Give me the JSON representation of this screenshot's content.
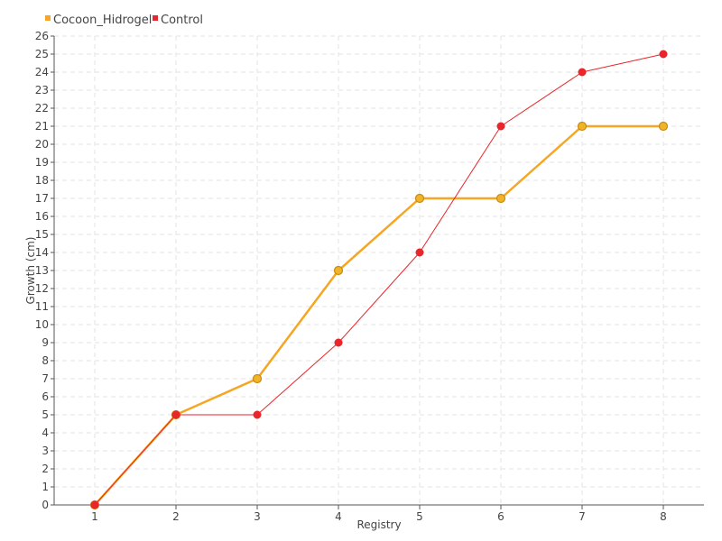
{
  "chart_data": {
    "type": "line",
    "x": [
      1,
      2,
      3,
      4,
      5,
      6,
      7,
      8
    ],
    "xlabel": "Registry",
    "ylabel": "Growth (cm)",
    "ylim": [
      0,
      26
    ],
    "y_ticks": [
      0,
      1,
      2,
      3,
      4,
      5,
      6,
      7,
      8,
      9,
      10,
      11,
      12,
      13,
      14,
      15,
      16,
      17,
      18,
      19,
      20,
      21,
      22,
      23,
      24,
      25,
      26
    ],
    "grid": true,
    "legend_position": "top-left",
    "series": [
      {
        "name": "Cocoon_Hidrogel",
        "values": [
          0,
          5,
          7,
          13,
          17,
          17,
          21,
          21
        ],
        "color": "#f5a623"
      },
      {
        "name": "Control",
        "values": [
          0,
          5,
          5,
          9,
          14,
          21,
          24,
          25
        ],
        "color": "#e8262b"
      }
    ]
  }
}
